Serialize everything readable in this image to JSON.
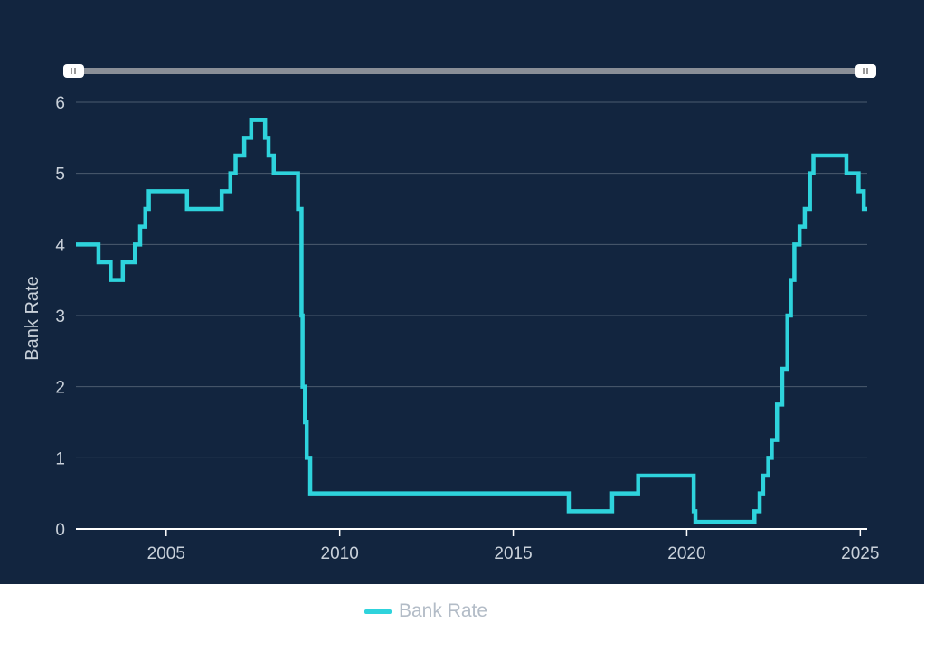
{
  "colors": {
    "background": "#12253f",
    "series": "#2ed3dc",
    "grid": "#4b5b6f",
    "axis": "#ffffff",
    "navigator": "#8a8f97",
    "legend_text": "#b3bcc7"
  },
  "navigator": {
    "left_handle_icon": "grip-handle-icon",
    "right_handle_icon": "grip-handle-icon"
  },
  "legend": {
    "label": "Bank Rate"
  },
  "chart_data": {
    "type": "line",
    "title": "",
    "xlabel": "",
    "ylabel": "Bank Rate",
    "xlim": [
      2002.4,
      2025.2
    ],
    "ylim": [
      0,
      6
    ],
    "x_ticks": [
      2005,
      2010,
      2015,
      2020,
      2025
    ],
    "y_ticks": [
      0,
      1,
      2,
      3,
      4,
      5,
      6
    ],
    "grid": true,
    "legend_position": "bottom",
    "series": [
      {
        "name": "Bank Rate",
        "step": true,
        "x": [
          2002.4,
          2003.05,
          2003.4,
          2003.75,
          2004.1,
          2004.25,
          2004.4,
          2004.5,
          2005.6,
          2006.6,
          2006.85,
          2007.0,
          2007.25,
          2007.45,
          2007.85,
          2007.95,
          2008.1,
          2008.25,
          2008.8,
          2008.9,
          2008.93,
          2009.0,
          2009.05,
          2009.15,
          2016.6,
          2017.85,
          2018.6,
          2020.2,
          2020.25,
          2021.95,
          2022.1,
          2022.2,
          2022.35,
          2022.45,
          2022.6,
          2022.75,
          2022.9,
          2023.0,
          2023.1,
          2023.25,
          2023.4,
          2023.55,
          2023.65,
          2024.6,
          2024.95,
          2025.1
        ],
        "values": [
          4.0,
          3.75,
          3.5,
          3.75,
          4.0,
          4.25,
          4.5,
          4.75,
          4.5,
          4.75,
          5.0,
          5.25,
          5.5,
          5.75,
          5.5,
          5.25,
          5.0,
          5.0,
          4.5,
          3.0,
          2.0,
          1.5,
          1.0,
          0.5,
          0.25,
          0.5,
          0.75,
          0.25,
          0.1,
          0.25,
          0.5,
          0.75,
          1.0,
          1.25,
          1.75,
          2.25,
          3.0,
          3.5,
          4.0,
          4.25,
          4.5,
          5.0,
          5.25,
          5.0,
          4.75,
          4.5
        ]
      }
    ]
  }
}
